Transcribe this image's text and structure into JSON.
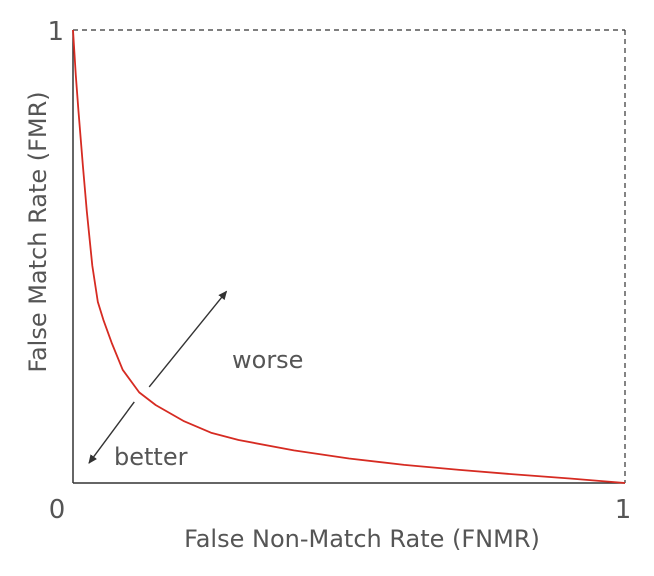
{
  "chart_data": {
    "type": "line",
    "xlabel": "False Non-Match Rate (FNMR)",
    "ylabel": "False Match Rate (FMR)",
    "xlim": [
      0,
      1
    ],
    "ylim": [
      0,
      1
    ],
    "x_ticks": [
      "0",
      "1"
    ],
    "y_ticks": [
      "1"
    ],
    "grid": false,
    "frame": "top and right edges dashed",
    "series": [
      {
        "color": "#d62b22",
        "points": [
          [
            0.0,
            1.0
          ],
          [
            0.005,
            0.9
          ],
          [
            0.01,
            0.82
          ],
          [
            0.018,
            0.7
          ],
          [
            0.025,
            0.6
          ],
          [
            0.035,
            0.48
          ],
          [
            0.045,
            0.4
          ],
          [
            0.055,
            0.36
          ],
          [
            0.07,
            0.31
          ],
          [
            0.09,
            0.25
          ],
          [
            0.12,
            0.2
          ],
          [
            0.15,
            0.172
          ],
          [
            0.2,
            0.137
          ],
          [
            0.25,
            0.111
          ],
          [
            0.3,
            0.095
          ],
          [
            0.4,
            0.072
          ],
          [
            0.5,
            0.054
          ],
          [
            0.6,
            0.04
          ],
          [
            0.7,
            0.029
          ],
          [
            0.8,
            0.019
          ],
          [
            0.9,
            0.01
          ],
          [
            1.0,
            0.0
          ]
        ]
      }
    ],
    "annotations": [
      {
        "text": "worse",
        "arrow_from": [
          0.138,
          0.212
        ],
        "arrow_to": [
          0.278,
          0.423
        ]
      },
      {
        "text": "better",
        "arrow_from": [
          0.111,
          0.179
        ],
        "arrow_to": [
          0.029,
          0.044
        ]
      }
    ],
    "colors": {
      "curve": "#d62b22",
      "axes": "#333333",
      "text": "#555555"
    }
  }
}
